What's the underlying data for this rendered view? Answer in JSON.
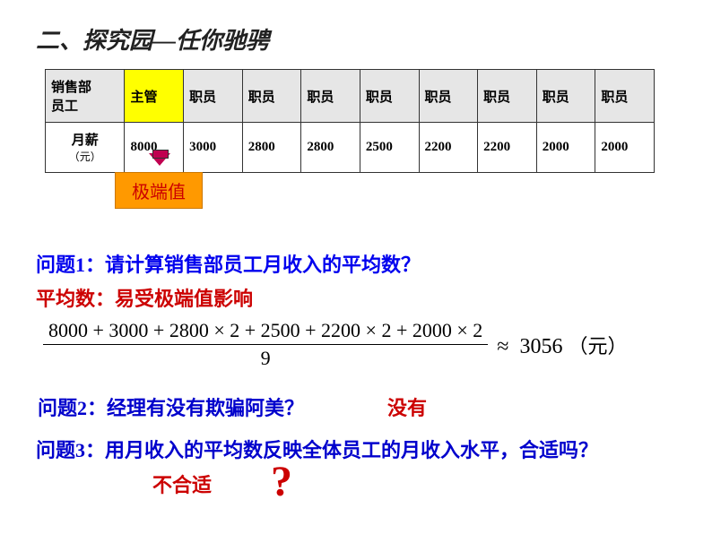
{
  "title": "二、探究园—任你驰骋",
  "table": {
    "headers": [
      "销售部员工",
      "主管",
      "职员",
      "职员",
      "职员",
      "职员",
      "职员",
      "职员",
      "职员",
      "职员"
    ],
    "highlight_col": 1,
    "header_bg": "#e6e6e6",
    "highlight_bg": "#ffff00",
    "row_label_main": "月薪",
    "row_label_sub": "（元）",
    "values": [
      "8000",
      "3000",
      "2800",
      "2800",
      "2500",
      "2200",
      "2200",
      "2000",
      "2000"
    ]
  },
  "extreme": {
    "label": "极端值",
    "bg": "#ff9900",
    "color": "#cc0000"
  },
  "q1": "问题1：请计算销售部员工月收入的平均数？",
  "mean_note": "平均数：易受极端值影响",
  "formula": {
    "numerator": "8000 + 3000 + 2800 × 2 + 2500 + 2200 × 2 + 2000 × 2",
    "denominator": "9",
    "approx_sym": "≈",
    "result": "3056",
    "unit": "（元）"
  },
  "q2": "问题2：经理有没有欺骗阿美？",
  "a2": "没有",
  "q3": "问题3：用月收入的平均数反映全体员工的月收入水平，合适吗？",
  "a3": "不合适",
  "qmark": "?",
  "colors": {
    "question": "#0000cc",
    "answer": "#cc0000",
    "title": "#222222"
  }
}
